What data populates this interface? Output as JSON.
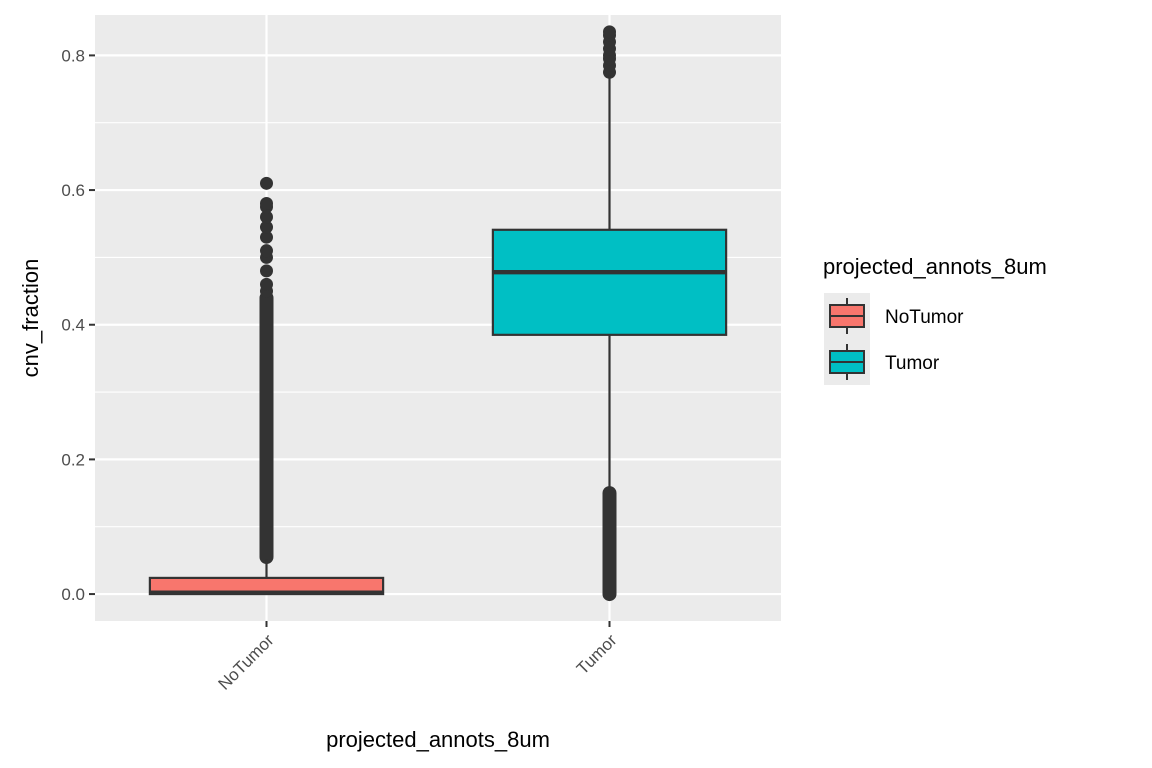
{
  "chart_data": {
    "type": "boxplot",
    "xlabel": "projected_annots_8um",
    "ylabel": "cnv_fraction",
    "ylim": [
      -0.04,
      0.86
    ],
    "y_ticks": [
      "0.0",
      "0.2",
      "0.4",
      "0.6",
      "0.8"
    ],
    "grid": true,
    "categories": [
      "NoTumor",
      "Tumor"
    ],
    "series": [
      {
        "category": "NoTumor",
        "color": "#F8766D",
        "min": 0.0,
        "q1": 0.0,
        "median": 0.002,
        "q3": 0.024,
        "max": 0.052,
        "outliers_dense": [
          0.055,
          0.44
        ],
        "outliers": [
          0.45,
          0.46,
          0.48,
          0.5,
          0.51,
          0.53,
          0.545,
          0.56,
          0.575,
          0.58,
          0.61
        ]
      },
      {
        "category": "Tumor",
        "color": "#00BFC4",
        "min": 0.155,
        "q1": 0.385,
        "median": 0.478,
        "q3": 0.541,
        "max": 0.77,
        "outliers_dense": [
          0.0,
          0.15
        ],
        "outliers": [
          0.775,
          0.785,
          0.795,
          0.8,
          0.81,
          0.82,
          0.83,
          0.835
        ]
      }
    ],
    "legend": {
      "title": "projected_annots_8um",
      "position": "right",
      "entries": [
        {
          "label": "NoTumor",
          "color": "#F8766D"
        },
        {
          "label": "Tumor",
          "color": "#00BFC4"
        }
      ]
    }
  }
}
